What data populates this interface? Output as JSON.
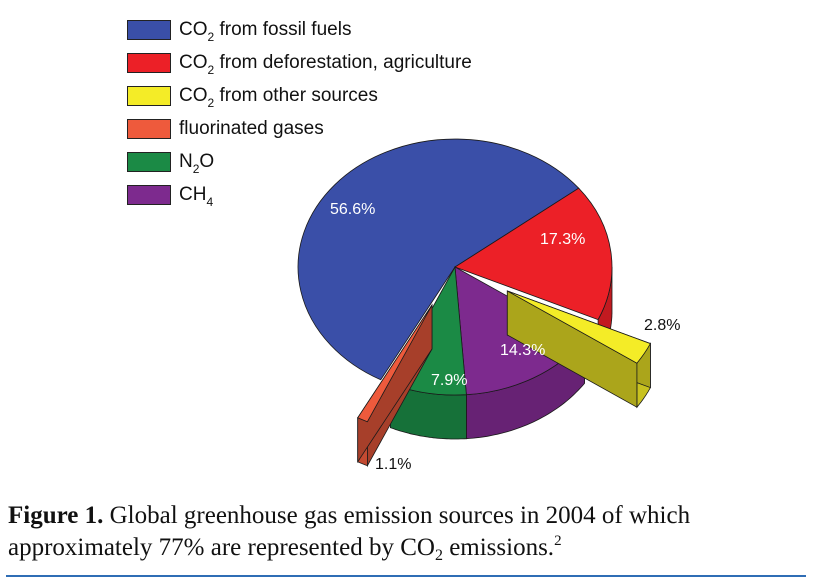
{
  "chart_data": {
    "type": "pie",
    "title": "",
    "slices": [
      {
        "name": "CO2 from fossil fuels",
        "legend_parts": [
          "CO",
          "2",
          " from fossil fuels"
        ],
        "value": 56.6,
        "label": "56.6%",
        "color": "#3a4fa8",
        "label_color": "#ffffff",
        "exploded": false
      },
      {
        "name": "CO2 from deforestation, agriculture",
        "legend_parts": [
          "CO",
          "2",
          " from deforestation, agriculture"
        ],
        "value": 17.3,
        "label": "17.3%",
        "color": "#ec2027",
        "label_color": "#ffffff",
        "exploded": false
      },
      {
        "name": "CO2 from other sources",
        "legend_parts": [
          "CO",
          "2",
          " from other sources"
        ],
        "value": 2.8,
        "label": "2.8%",
        "color": "#f4ec27",
        "label_color": "#111111",
        "exploded": true
      },
      {
        "name": "CH4",
        "legend_parts": [
          "CH",
          "4",
          ""
        ],
        "value": 14.3,
        "label": "14.3%",
        "color": "#7d2a8e",
        "label_color": "#ffffff",
        "exploded": false
      },
      {
        "name": "N2O",
        "legend_parts": [
          "N",
          "2",
          "O"
        ],
        "value": 7.9,
        "label": "7.9%",
        "color": "#1b8a45",
        "label_color": "#ffffff",
        "exploded": false
      },
      {
        "name": "fluorinated gases",
        "legend_parts": [
          "fluorinated gases",
          "",
          ""
        ],
        "value": 1.1,
        "label": "1.1%",
        "color": "#ee5a3c",
        "label_color": "#111111",
        "exploded": true
      }
    ],
    "legend_order": [
      0,
      1,
      2,
      5,
      4,
      3
    ],
    "legend_position": "top-left"
  },
  "caption": {
    "label": "Figure 1.",
    "line1": " Global greenhouse gas emission sources in 2004 of which",
    "line2_pre": "approximately 77% are represented by CO",
    "line2_sub": "2",
    "line2_post": " emissions.",
    "sup": "2"
  },
  "colors": {
    "rule": "#2f6db5"
  }
}
